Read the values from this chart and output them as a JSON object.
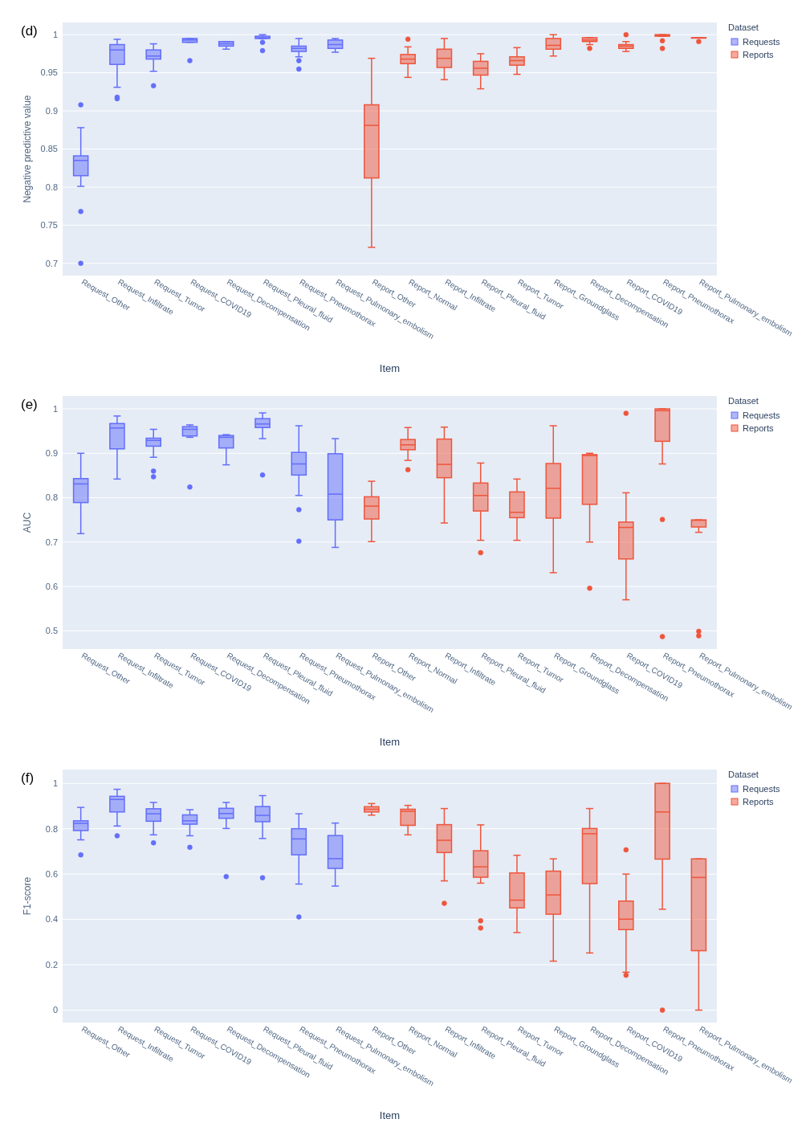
{
  "chart_data": [
    {
      "type": "box",
      "annotations": [
        "(d)"
      ],
      "xlabel": "Item",
      "ylabel": "Negative predictive value",
      "legend_title": "Dataset",
      "legend": "top right",
      "grid": "y",
      "categories": [
        "Request_Other",
        "Request_Infiltrate",
        "Request_Tumor",
        "Request_COVID19",
        "Request_Decompensation",
        "Request_Pleural_fluid",
        "Request_Pneumothorax",
        "Request_Pulmonary_embolism",
        "Report_Other",
        "Report_Normal",
        "Report_Infiltrate",
        "Report_Pleural_fluid",
        "Report_Tumor",
        "Report_Groundglass",
        "Report_Decompensation",
        "Report_COVID19",
        "Report_Pneumothorax",
        "Report_Pulmonary_embolism"
      ],
      "ylim": [
        0.684,
        1.016
      ],
      "yticks": [
        0.7,
        0.75,
        0.8,
        0.85,
        0.9,
        0.95,
        1
      ],
      "series": [
        {
          "name": "Requests",
          "color": "#636efa",
          "x": [
            "Request_Other",
            "Request_Infiltrate",
            "Request_Tumor",
            "Request_COVID19",
            "Request_Decompensation",
            "Request_Pleural_fluid",
            "Request_Pneumothorax",
            "Request_Pulmonary_embolism"
          ],
          "boxes": [
            {
              "low": 0.801,
              "q1": 0.815,
              "median": 0.835,
              "q3": 0.841,
              "high": 0.878,
              "outliers": [
                0.908,
                0.768,
                0.7
              ]
            },
            {
              "low": 0.931,
              "q1": 0.961,
              "median": 0.98,
              "q3": 0.987,
              "high": 0.994,
              "outliers": [
                0.918,
                0.916
              ]
            },
            {
              "low": 0.952,
              "q1": 0.968,
              "median": 0.972,
              "q3": 0.98,
              "high": 0.988,
              "outliers": [
                0.933
              ]
            },
            {
              "low": 0.99,
              "q1": 0.99,
              "median": 0.993,
              "q3": 0.995,
              "high": 0.995,
              "outliers": [
                0.966
              ]
            },
            {
              "low": 0.981,
              "q1": 0.985,
              "median": 0.988,
              "q3": 0.991,
              "high": 0.991
            },
            {
              "low": 0.995,
              "q1": 0.995,
              "median": 0.996,
              "q3": 0.998,
              "high": 1.0,
              "outliers": [
                0.99,
                0.979
              ]
            },
            {
              "low": 0.971,
              "q1": 0.978,
              "median": 0.982,
              "q3": 0.985,
              "high": 0.995,
              "outliers": [
                0.966,
                0.955
              ]
            },
            {
              "low": 0.977,
              "q1": 0.982,
              "median": 0.987,
              "q3": 0.993,
              "high": 0.995
            }
          ]
        },
        {
          "name": "Reports",
          "color": "#ef553b",
          "x": [
            "Report_Other",
            "Report_Normal",
            "Report_Infiltrate",
            "Report_Pleural_fluid",
            "Report_Tumor",
            "Report_Groundglass",
            "Report_Decompensation",
            "Report_COVID19",
            "Report_Pneumothorax",
            "Report_Pulmonary_embolism"
          ],
          "boxes": [
            {
              "low": 0.721,
              "q1": 0.812,
              "median": 0.881,
              "q3": 0.908,
              "high": 0.969
            },
            {
              "low": 0.944,
              "q1": 0.962,
              "median": 0.968,
              "q3": 0.974,
              "high": 0.984,
              "outliers": [
                0.994
              ]
            },
            {
              "low": 0.941,
              "q1": 0.957,
              "median": 0.969,
              "q3": 0.981,
              "high": 0.995
            },
            {
              "low": 0.929,
              "q1": 0.947,
              "median": 0.956,
              "q3": 0.965,
              "high": 0.975
            },
            {
              "low": 0.948,
              "q1": 0.96,
              "median": 0.966,
              "q3": 0.971,
              "high": 0.983
            },
            {
              "low": 0.972,
              "q1": 0.981,
              "median": 0.986,
              "q3": 0.995,
              "high": 1.0
            },
            {
              "low": 0.987,
              "q1": 0.991,
              "median": 0.993,
              "q3": 0.996,
              "high": 0.996,
              "outliers": [
                0.982
              ]
            },
            {
              "low": 0.978,
              "q1": 0.982,
              "median": 0.985,
              "q3": 0.987,
              "high": 0.991,
              "outliers": [
                1.0
              ]
            },
            {
              "low": 0.998,
              "q1": 0.998,
              "median": 0.999,
              "q3": 1.0,
              "high": 1.0,
              "outliers": [
                0.992,
                0.982
              ]
            },
            {
              "low": 0.996,
              "q1": 0.996,
              "median": 0.996,
              "q3": 0.996,
              "high": 0.996,
              "outliers": [
                0.991
              ]
            }
          ]
        }
      ]
    },
    {
      "type": "box",
      "annotations": [
        "(e)"
      ],
      "xlabel": "Item",
      "ylabel": "AUC",
      "legend_title": "Dataset",
      "legend": "top right",
      "grid": "y",
      "categories": [
        "Request_Other",
        "Request_Infiltrate",
        "Request_Tumor",
        "Request_COVID19",
        "Request_Decompensation",
        "Request_Pleural_fluid",
        "Request_Pneumothorax",
        "Request_Pulmonary_embolism",
        "Report_Other",
        "Report_Normal",
        "Report_Infiltrate",
        "Report_Pleural_fluid",
        "Report_Tumor",
        "Report_Groundglass",
        "Report_Decompensation",
        "Report_COVID19",
        "Report_Pneumothorax",
        "Report_Pulmonary_embolism"
      ],
      "ylim": [
        0.459,
        1.029
      ],
      "yticks": [
        0.5,
        0.6,
        0.7,
        0.8,
        0.9,
        1
      ],
      "series": [
        {
          "name": "Requests",
          "color": "#636efa",
          "x": [
            "Request_Other",
            "Request_Infiltrate",
            "Request_Tumor",
            "Request_COVID19",
            "Request_Decompensation",
            "Request_Pleural_fluid",
            "Request_Pneumothorax",
            "Request_Pulmonary_embolism"
          ],
          "boxes": [
            {
              "low": 0.719,
              "q1": 0.789,
              "median": 0.831,
              "q3": 0.843,
              "high": 0.9
            },
            {
              "low": 0.842,
              "q1": 0.91,
              "median": 0.957,
              "q3": 0.967,
              "high": 0.984
            },
            {
              "low": 0.891,
              "q1": 0.916,
              "median": 0.929,
              "q3": 0.934,
              "high": 0.954,
              "outliers": [
                0.86,
                0.847
              ]
            },
            {
              "low": 0.936,
              "q1": 0.939,
              "median": 0.954,
              "q3": 0.96,
              "high": 0.964,
              "outliers": [
                0.824
              ]
            },
            {
              "low": 0.874,
              "q1": 0.912,
              "median": 0.936,
              "q3": 0.94,
              "high": 0.942
            },
            {
              "low": 0.933,
              "q1": 0.958,
              "median": 0.966,
              "q3": 0.978,
              "high": 0.991,
              "outliers": [
                0.851
              ]
            },
            {
              "low": 0.805,
              "q1": 0.851,
              "median": 0.876,
              "q3": 0.902,
              "high": 0.962,
              "outliers": [
                0.773,
                0.702
              ]
            },
            {
              "low": 0.688,
              "q1": 0.75,
              "median": 0.808,
              "q3": 0.899,
              "high": 0.933
            }
          ]
        },
        {
          "name": "Reports",
          "color": "#ef553b",
          "x": [
            "Report_Other",
            "Report_Normal",
            "Report_Infiltrate",
            "Report_Pleural_fluid",
            "Report_Tumor",
            "Report_Groundglass",
            "Report_Decompensation",
            "Report_COVID19",
            "Report_Pneumothorax",
            "Report_Pulmonary_embolism"
          ],
          "boxes": [
            {
              "low": 0.701,
              "q1": 0.752,
              "median": 0.781,
              "q3": 0.802,
              "high": 0.837
            },
            {
              "low": 0.884,
              "q1": 0.908,
              "median": 0.919,
              "q3": 0.931,
              "high": 0.958,
              "outliers": [
                0.863
              ]
            },
            {
              "low": 0.743,
              "q1": 0.845,
              "median": 0.875,
              "q3": 0.932,
              "high": 0.959
            },
            {
              "low": 0.704,
              "q1": 0.77,
              "median": 0.805,
              "q3": 0.833,
              "high": 0.878,
              "outliers": [
                0.676
              ]
            },
            {
              "low": 0.704,
              "q1": 0.755,
              "median": 0.767,
              "q3": 0.813,
              "high": 0.842
            },
            {
              "low": 0.631,
              "q1": 0.754,
              "median": 0.821,
              "q3": 0.877,
              "high": 0.962
            },
            {
              "low": 0.7,
              "q1": 0.785,
              "median": 0.895,
              "q3": 0.897,
              "high": 0.9,
              "outliers": [
                0.596
              ]
            },
            {
              "low": 0.57,
              "q1": 0.662,
              "median": 0.733,
              "q3": 0.745,
              "high": 0.811,
              "outliers": [
                0.99
              ]
            },
            {
              "low": 0.876,
              "q1": 0.927,
              "median": 0.996,
              "q3": 1.0,
              "high": 1.0,
              "outliers": [
                0.751,
                0.487
              ]
            },
            {
              "low": 0.722,
              "q1": 0.734,
              "median": 0.749,
              "q3": 0.75,
              "high": 0.75,
              "outliers": [
                0.499,
                0.489
              ]
            }
          ]
        }
      ]
    },
    {
      "type": "box",
      "annotations": [
        "(f)"
      ],
      "xlabel": "Item",
      "ylabel": "F1-score",
      "legend_title": "Dataset",
      "legend": "top right",
      "grid": "y",
      "categories": [
        "Request_Other",
        "Request_Infiltrate",
        "Request_Tumor",
        "Request_COVID19",
        "Request_Decompensation",
        "Request_Pleural_fluid",
        "Request_Pneumothorax",
        "Request_Pulmonary_embolism",
        "Report_Other",
        "Report_Normal",
        "Report_Infiltrate",
        "Report_Pleural_fluid",
        "Report_Tumor",
        "Report_Groundglass",
        "Report_Decompensation",
        "Report_COVID19",
        "Report_Pneumothorax",
        "Report_Pulmonary_embolism"
      ],
      "ylim": [
        -0.055,
        1.061
      ],
      "yticks": [
        0,
        0.2,
        0.4,
        0.6,
        0.8,
        1
      ],
      "series": [
        {
          "name": "Requests",
          "color": "#636efa",
          "x": [
            "Request_Other",
            "Request_Infiltrate",
            "Request_Tumor",
            "Request_COVID19",
            "Request_Decompensation",
            "Request_Pleural_fluid",
            "Request_Pneumothorax",
            "Request_Pulmonary_embolism"
          ],
          "boxes": [
            {
              "low": 0.751,
              "q1": 0.792,
              "median": 0.824,
              "q3": 0.835,
              "high": 0.894,
              "outliers": [
                0.685
              ]
            },
            {
              "low": 0.812,
              "q1": 0.874,
              "median": 0.929,
              "q3": 0.943,
              "high": 0.974,
              "outliers": [
                0.769
              ]
            },
            {
              "low": 0.773,
              "q1": 0.833,
              "median": 0.866,
              "q3": 0.888,
              "high": 0.916,
              "outliers": [
                0.738
              ]
            },
            {
              "low": 0.769,
              "q1": 0.82,
              "median": 0.835,
              "q3": 0.861,
              "high": 0.884,
              "outliers": [
                0.718
              ]
            },
            {
              "low": 0.801,
              "q1": 0.846,
              "median": 0.867,
              "q3": 0.89,
              "high": 0.916,
              "outliers": [
                0.589
              ]
            },
            {
              "low": 0.757,
              "q1": 0.831,
              "median": 0.859,
              "q3": 0.898,
              "high": 0.946,
              "outliers": [
                0.584
              ]
            },
            {
              "low": 0.556,
              "q1": 0.685,
              "median": 0.755,
              "q3": 0.8,
              "high": 0.866,
              "outliers": [
                0.411
              ]
            },
            {
              "low": 0.547,
              "q1": 0.625,
              "median": 0.668,
              "q3": 0.77,
              "high": 0.825
            }
          ]
        },
        {
          "name": "Reports",
          "color": "#ef553b",
          "x": [
            "Report_Other",
            "Report_Normal",
            "Report_Infiltrate",
            "Report_Pleural_fluid",
            "Report_Tumor",
            "Report_Groundglass",
            "Report_Decompensation",
            "Report_COVID19",
            "Report_Pneumothorax",
            "Report_Pulmonary_embolism"
          ],
          "boxes": [
            {
              "low": 0.86,
              "q1": 0.874,
              "median": 0.886,
              "q3": 0.897,
              "high": 0.911
            },
            {
              "low": 0.773,
              "q1": 0.815,
              "median": 0.877,
              "q3": 0.886,
              "high": 0.903
            },
            {
              "low": 0.57,
              "q1": 0.695,
              "median": 0.749,
              "q3": 0.818,
              "high": 0.889,
              "outliers": [
                0.471
              ]
            },
            {
              "low": 0.56,
              "q1": 0.586,
              "median": 0.632,
              "q3": 0.703,
              "high": 0.817,
              "outliers": [
                0.394,
                0.362
              ]
            },
            {
              "low": 0.342,
              "q1": 0.451,
              "median": 0.485,
              "q3": 0.605,
              "high": 0.683
            },
            {
              "low": 0.216,
              "q1": 0.423,
              "median": 0.508,
              "q3": 0.613,
              "high": 0.667
            },
            {
              "low": 0.252,
              "q1": 0.558,
              "median": 0.778,
              "q3": 0.801,
              "high": 0.889
            },
            {
              "low": 0.167,
              "q1": 0.355,
              "median": 0.401,
              "q3": 0.481,
              "high": 0.6,
              "outliers": [
                0.707,
                0.154
              ]
            },
            {
              "low": 0.445,
              "q1": 0.666,
              "median": 0.874,
              "q3": 1.0,
              "high": 1.0,
              "outliers": [
                0.0
              ]
            },
            {
              "low": 0.0,
              "q1": 0.262,
              "median": 0.585,
              "q3": 0.667,
              "high": 0.667
            }
          ]
        }
      ]
    }
  ]
}
